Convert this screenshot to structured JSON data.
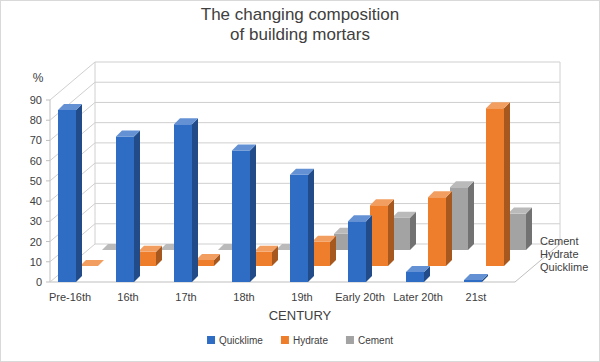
{
  "chart_data": {
    "type": "bar",
    "title": "The changing composition\nof building mortars",
    "x_label": "CENTURY",
    "y_label": "%",
    "categories": [
      "Pre-16th",
      "16th",
      "17th",
      "18th",
      "19th",
      "Early 20th",
      "Later 20th",
      "21st"
    ],
    "series": [
      {
        "name": "Quicklime",
        "color": "#2f6cc4",
        "values": [
          85,
          72,
          78,
          65,
          53,
          30,
          5,
          1
        ]
      },
      {
        "name": "Hydrate",
        "color": "#ee7d2c",
        "values": [
          0,
          7,
          3,
          7,
          12,
          30,
          34,
          78
        ]
      },
      {
        "name": "Cement",
        "color": "#a3a3a3",
        "values": [
          0,
          0,
          0,
          0,
          8,
          16,
          31,
          18
        ]
      }
    ],
    "ylim": [
      0,
      90
    ],
    "yticks": [
      0,
      10,
      20,
      30,
      40,
      50,
      60,
      70,
      80,
      90
    ],
    "grid": true,
    "legend": "bottom"
  }
}
